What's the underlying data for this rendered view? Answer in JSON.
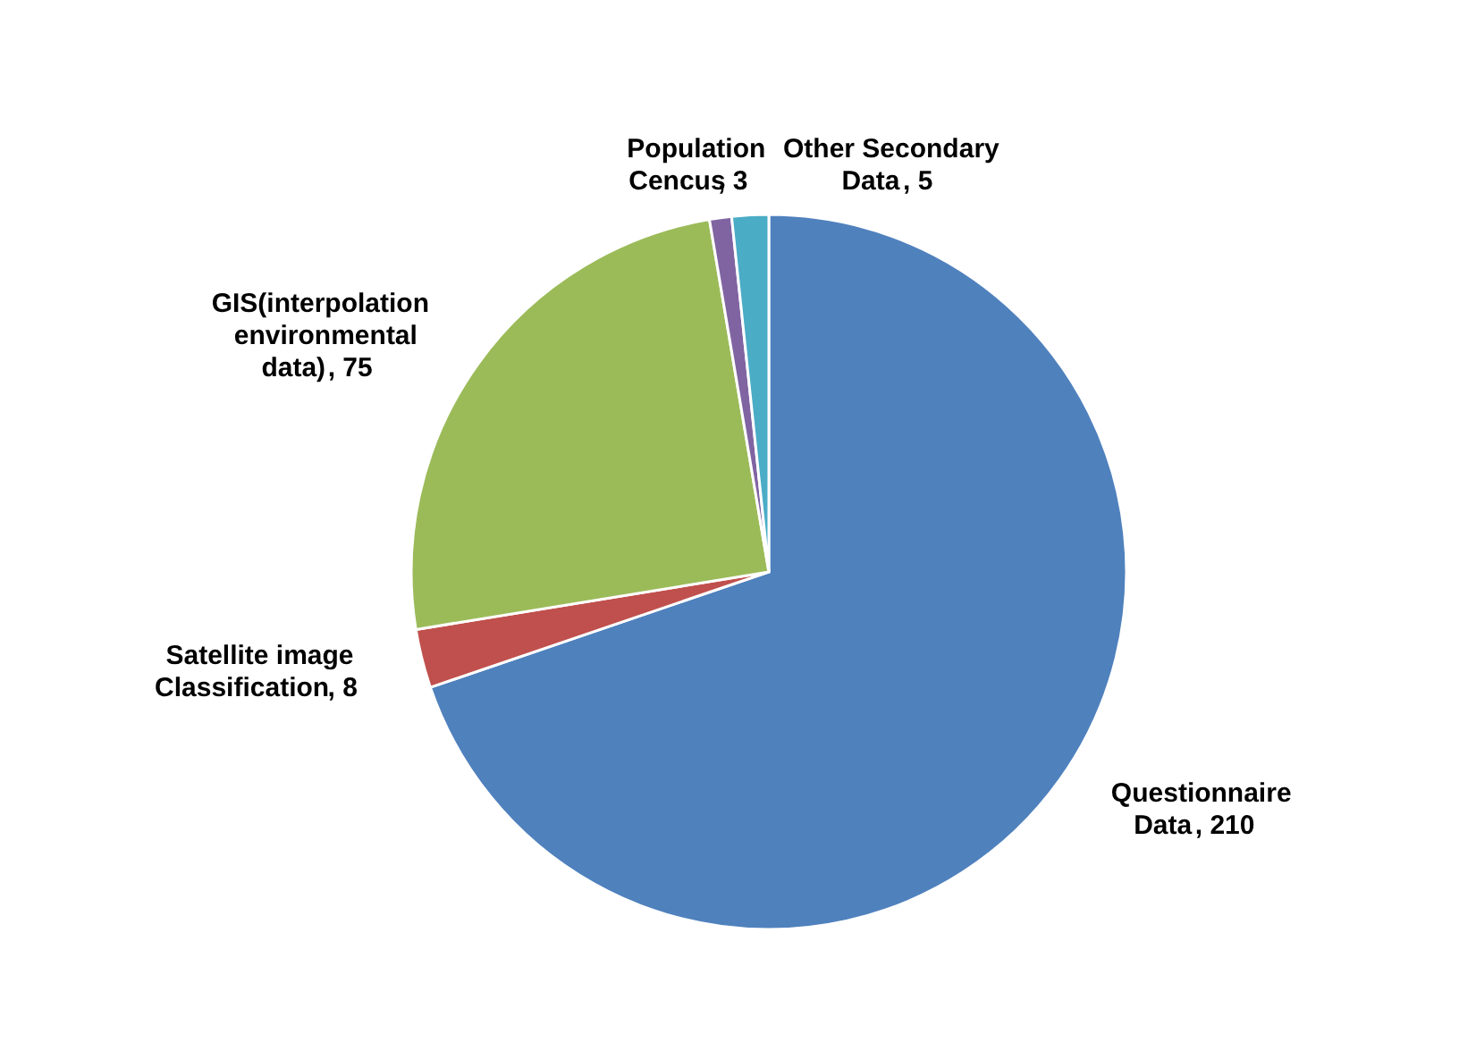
{
  "chart_data": {
    "type": "pie",
    "categories": [
      "Questionnaire Data",
      "Satellite image Classification",
      "GIS(interpolation environmental data)",
      "Population Cencus",
      "Other Secondary Data"
    ],
    "values": [
      210,
      8,
      75,
      3,
      5
    ],
    "colors": [
      "#4f81bd",
      "#c0504d",
      "#9bbb59",
      "#8064a2",
      "#4bacc6"
    ],
    "value_labels": [
      ", 210",
      ", 8",
      ", 75",
      ", 3",
      ", 5"
    ],
    "legend": false
  }
}
